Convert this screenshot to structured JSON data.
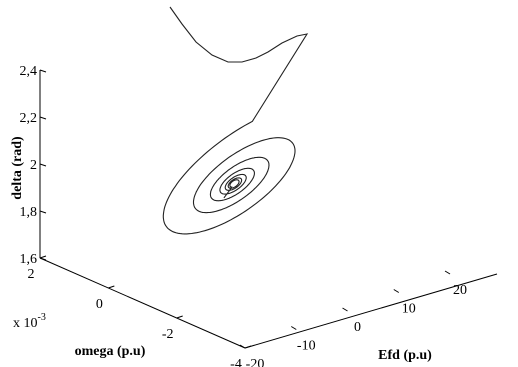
{
  "chart_data": {
    "type": "line",
    "projection": "3d",
    "grid": false,
    "axes": {
      "efd": {
        "label": "Efd (p.u)",
        "range": [
          -20,
          20
        ],
        "ticks": [
          {
            "value": -20,
            "label": "-20"
          },
          {
            "value": -10,
            "label": "-10"
          },
          {
            "value": 0,
            "label": "0"
          },
          {
            "value": 10,
            "label": "10"
          },
          {
            "value": 20,
            "label": "20"
          }
        ]
      },
      "omega": {
        "label": "omega (p.u)",
        "range": [
          -4,
          2
        ],
        "exponent_label": "x 10",
        "exponent_power": "-3",
        "ticks": [
          {
            "value": -4,
            "label": "-4"
          },
          {
            "value": -2,
            "label": "-2"
          },
          {
            "value": 0,
            "label": "0"
          },
          {
            "value": 2,
            "label": "2"
          }
        ]
      },
      "delta": {
        "label": "delta (rad)",
        "range": [
          1.6,
          2.4
        ],
        "ticks": [
          {
            "value": 1.6,
            "label": "1,6"
          },
          {
            "value": 1.8,
            "label": "1,8"
          },
          {
            "value": 2.0,
            "label": "2"
          },
          {
            "value": 2.2,
            "label": "2,2"
          },
          {
            "value": 2.4,
            "label": "2,4"
          }
        ]
      }
    },
    "series": [
      {
        "color": "#222222",
        "trajectory": "spiral converging to equilibrium",
        "equilibrium": {
          "efd": 4.5,
          "omega": 0.0,
          "delta": 1.85
        },
        "start": {
          "efd": -7.0,
          "omega": 2.0,
          "delta": 2.72
        }
      }
    ]
  }
}
